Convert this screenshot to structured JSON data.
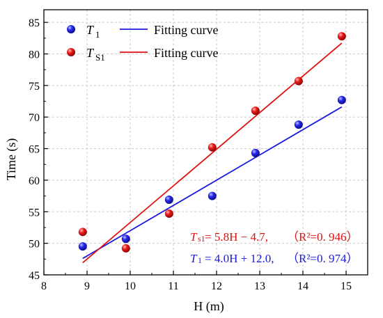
{
  "chart_data": {
    "type": "scatter",
    "xlabel": "H (m)",
    "ylabel": "Time (s)",
    "xlim": [
      8,
      15.5
    ],
    "ylim": [
      45,
      87
    ],
    "xticks": [
      "8",
      "9",
      "10",
      "11",
      "12",
      "13",
      "14",
      "15"
    ],
    "yticks": [
      "45",
      "50",
      "55",
      "60",
      "65",
      "70",
      "75",
      "80",
      "85"
    ],
    "grid": true,
    "legend_position": "top-left",
    "x": [
      8.9,
      9.9,
      10.9,
      11.9,
      12.9,
      13.9,
      14.9
    ],
    "series": [
      {
        "name": "T",
        "name_sub": "1",
        "color": "#1a1adc",
        "values": [
          49.5,
          50.7,
          56.9,
          57.5,
          64.3,
          68.8,
          72.7
        ],
        "fit_name": "Fitting curve",
        "fit_slope": 4.0,
        "fit_intercept": 12.0,
        "equation": {
          "symbol": "T",
          "sub": "1",
          "rhs": " = 4.0H + 12.0,",
          "r2": "（R²=0. 974）"
        }
      },
      {
        "name": "T",
        "name_sub": "S1",
        "color": "#e01010",
        "values": [
          51.8,
          49.2,
          54.7,
          65.2,
          71.0,
          75.7,
          82.8
        ],
        "fit_name": "Fitting curve",
        "fit_slope": 5.8,
        "fit_intercept": -4.7,
        "equation": {
          "symbol": "T",
          "sub": "s1",
          "rhs": " = 5.8H − 4.7,",
          "r2": "（R²=0. 946）"
        }
      }
    ]
  }
}
